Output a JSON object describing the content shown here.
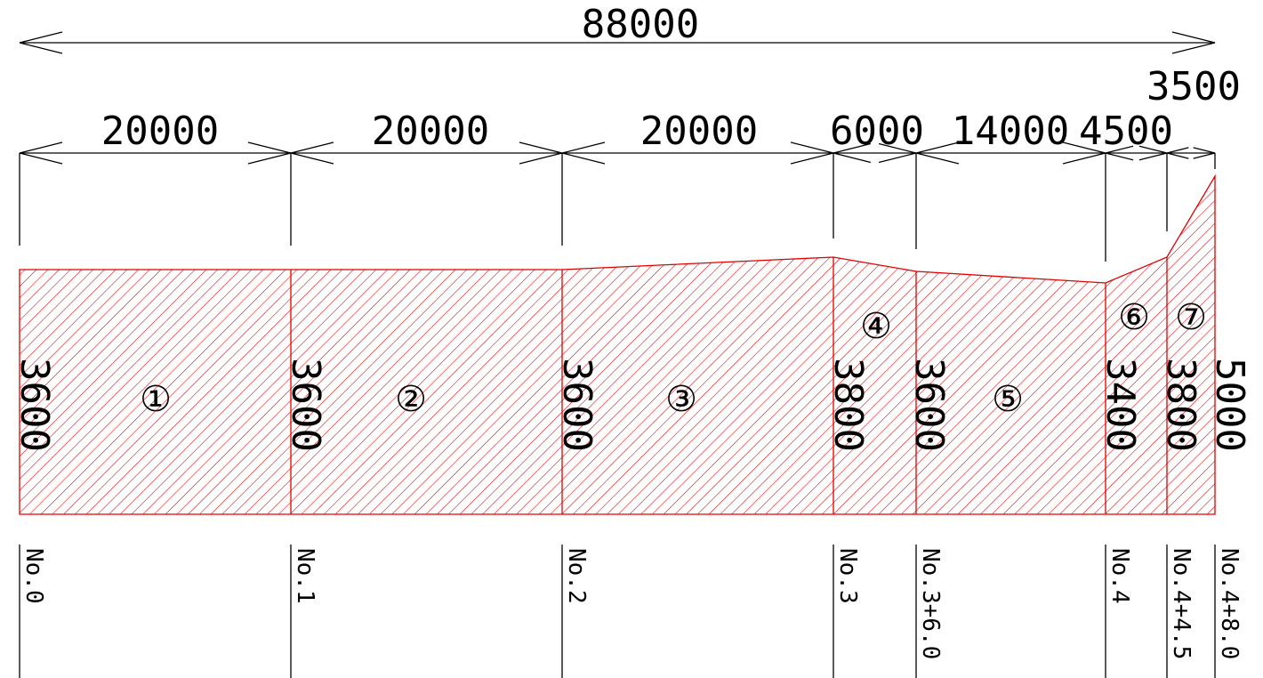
{
  "overall_length": "88000",
  "segments": [
    {
      "length": "20000",
      "no": "①",
      "height": "3600",
      "station": "No.0"
    },
    {
      "length": "20000",
      "no": "②",
      "height": "3600",
      "station": "No.1"
    },
    {
      "length": "20000",
      "no": "③",
      "height": "3600",
      "station": "No.2"
    },
    {
      "length": "6000",
      "no": "④",
      "height": "3800",
      "station": "No.3"
    },
    {
      "length": "14000",
      "no": "⑤",
      "height": "3600",
      "station": "No.3+6.0"
    },
    {
      "length": "4500",
      "no": "⑥",
      "height": "3400",
      "station": "No.4"
    },
    {
      "length": "3500",
      "no": "⑦",
      "height": "3800",
      "station": "No.4+4.5"
    }
  ],
  "end": {
    "height": "5000",
    "station": "No.4+8.0"
  },
  "hatch_color": "#e00000"
}
